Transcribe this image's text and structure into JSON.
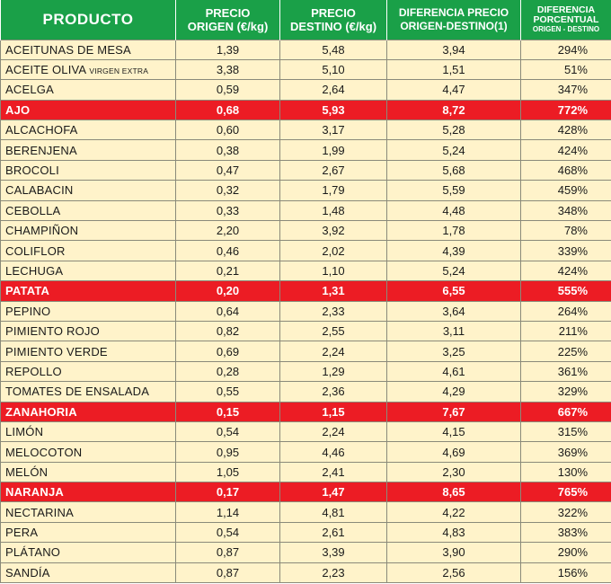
{
  "headers": {
    "product": "PRODUCTO",
    "origin_line1": "PRECIO",
    "origin_line2": "ORIGEN (€/kg)",
    "dest_line1": "PRECIO",
    "dest_line2": "DESTINO (€/kg)",
    "diff_line1": "DIFERENCIA PRECIO",
    "diff_line2": "ORIGEN-DESTINO(1)",
    "pct_line1": "DIFERENCIA",
    "pct_line2": "PORCENTUAL",
    "pct_line3": "ORIGEN - DESTINO"
  },
  "rows": [
    {
      "name": "ACEITUNAS DE MESA",
      "name_small": "",
      "origin": "1,39",
      "destination": "5,48",
      "difference": "3,94",
      "percent": "294%",
      "highlight": false
    },
    {
      "name": "ACEITE OLIVA",
      "name_small": "VIRGEN EXTRA",
      "origin": "3,38",
      "destination": "5,10",
      "difference": "1,51",
      "percent": "51%",
      "highlight": false
    },
    {
      "name": "ACELGA",
      "name_small": "",
      "origin": "0,59",
      "destination": "2,64",
      "difference": "4,47",
      "percent": "347%",
      "highlight": false
    },
    {
      "name": "AJO",
      "name_small": "",
      "origin": "0,68",
      "destination": "5,93",
      "difference": "8,72",
      "percent": "772%",
      "highlight": true
    },
    {
      "name": "ALCACHOFA",
      "name_small": "",
      "origin": "0,60",
      "destination": "3,17",
      "difference": "5,28",
      "percent": "428%",
      "highlight": false
    },
    {
      "name": "BERENJENA",
      "name_small": "",
      "origin": "0,38",
      "destination": "1,99",
      "difference": "5,24",
      "percent": "424%",
      "highlight": false
    },
    {
      "name": "BROCOLI",
      "name_small": "",
      "origin": "0,47",
      "destination": "2,67",
      "difference": "5,68",
      "percent": "468%",
      "highlight": false
    },
    {
      "name": "CALABACIN",
      "name_small": "",
      "origin": "0,32",
      "destination": "1,79",
      "difference": "5,59",
      "percent": "459%",
      "highlight": false
    },
    {
      "name": "CEBOLLA",
      "name_small": "",
      "origin": "0,33",
      "destination": "1,48",
      "difference": "4,48",
      "percent": "348%",
      "highlight": false
    },
    {
      "name": "CHAMPIÑON",
      "name_small": "",
      "origin": "2,20",
      "destination": "3,92",
      "difference": "1,78",
      "percent": "78%",
      "highlight": false
    },
    {
      "name": "COLIFLOR",
      "name_small": "",
      "origin": "0,46",
      "destination": "2,02",
      "difference": "4,39",
      "percent": "339%",
      "highlight": false
    },
    {
      "name": "LECHUGA",
      "name_small": "",
      "origin": "0,21",
      "destination": "1,10",
      "difference": "5,24",
      "percent": "424%",
      "highlight": false
    },
    {
      "name": "PATATA",
      "name_small": "",
      "origin": "0,20",
      "destination": "1,31",
      "difference": "6,55",
      "percent": "555%",
      "highlight": true
    },
    {
      "name": "PEPINO",
      "name_small": "",
      "origin": "0,64",
      "destination": "2,33",
      "difference": "3,64",
      "percent": "264%",
      "highlight": false
    },
    {
      "name": "PIMIENTO ROJO",
      "name_small": "",
      "origin": "0,82",
      "destination": "2,55",
      "difference": "3,11",
      "percent": "211%",
      "highlight": false
    },
    {
      "name": "PIMIENTO VERDE",
      "name_small": "",
      "origin": "0,69",
      "destination": "2,24",
      "difference": "3,25",
      "percent": "225%",
      "highlight": false
    },
    {
      "name": "REPOLLO",
      "name_small": "",
      "origin": "0,28",
      "destination": "1,29",
      "difference": "4,61",
      "percent": "361%",
      "highlight": false
    },
    {
      "name": "TOMATES DE ENSALADA",
      "name_small": "",
      "origin": "0,55",
      "destination": "2,36",
      "difference": "4,29",
      "percent": "329%",
      "highlight": false
    },
    {
      "name": "ZANAHORIA",
      "name_small": "",
      "origin": "0,15",
      "destination": "1,15",
      "difference": "7,67",
      "percent": "667%",
      "highlight": true
    },
    {
      "name": "LIMÓN",
      "name_small": "",
      "origin": "0,54",
      "destination": "2,24",
      "difference": "4,15",
      "percent": "315%",
      "highlight": false
    },
    {
      "name": "MELOCOTON",
      "name_small": "",
      "origin": "0,95",
      "destination": "4,46",
      "difference": "4,69",
      "percent": "369%",
      "highlight": false
    },
    {
      "name": "MELÓN",
      "name_small": "",
      "origin": "1,05",
      "destination": "2,41",
      "difference": "2,30",
      "percent": "130%",
      "highlight": false
    },
    {
      "name": "NARANJA",
      "name_small": "",
      "origin": "0,17",
      "destination": "1,47",
      "difference": "8,65",
      "percent": "765%",
      "highlight": true
    },
    {
      "name": "NECTARINA",
      "name_small": "",
      "origin": "1,14",
      "destination": "4,81",
      "difference": "4,22",
      "percent": "322%",
      "highlight": false
    },
    {
      "name": "PERA",
      "name_small": "",
      "origin": "0,54",
      "destination": "2,61",
      "difference": "4,83",
      "percent": "383%",
      "highlight": false
    },
    {
      "name": "PLÁTANO",
      "name_small": "",
      "origin": "0,87",
      "destination": "3,39",
      "difference": "3,90",
      "percent": "290%",
      "highlight": false
    },
    {
      "name": "SANDÍA",
      "name_small": "",
      "origin": "0,87",
      "destination": "2,23",
      "difference": "2,56",
      "percent": "156%",
      "highlight": false
    }
  ],
  "colors": {
    "header_green": "#1aa048",
    "row_cream": "#fff3ca",
    "highlight_red": "#ec1c24"
  }
}
